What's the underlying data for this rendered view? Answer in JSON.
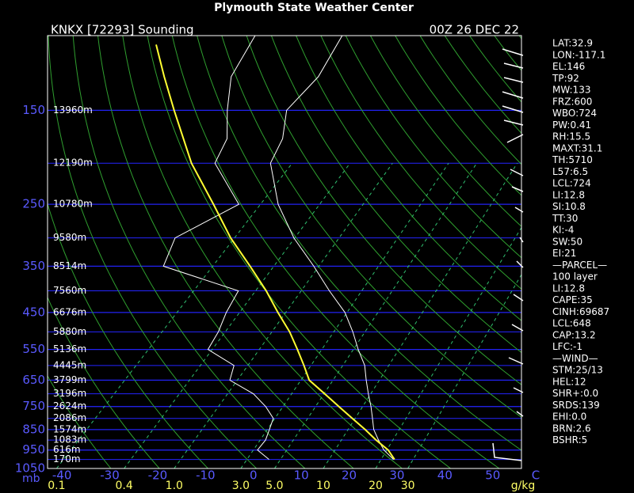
{
  "chart_data": {
    "type": "skewt",
    "title": "Plymouth State Weather Center",
    "station": "KNKX [72293] Sounding",
    "time": "00Z 26 DEC 22",
    "ylim": [
      1050,
      100
    ],
    "log_y": true,
    "yticks": [
      150,
      250,
      350,
      450,
      550,
      650,
      750,
      850,
      950,
      1050
    ],
    "y_unit": "mb",
    "xlim": [
      -43,
      56
    ],
    "xticks": [
      -40,
      -30,
      -20,
      -10,
      0,
      10,
      20,
      30,
      40,
      50
    ],
    "x_unit": "C",
    "isobar_color": "#2424ff",
    "isotherm_color": "#2f9f2f",
    "heights": {
      "pressure": [
        150,
        200,
        250,
        300,
        350,
        400,
        450,
        500,
        550,
        600,
        650,
        700,
        750,
        800,
        850,
        900,
        950,
        1000
      ],
      "labels": [
        "13960m",
        "12190m",
        "10780m",
        "9580m",
        "8514m",
        "7560m",
        "6676m",
        "5880m",
        "5136m",
        "4445m",
        "3799m",
        "3196m",
        "2624m",
        "2086m",
        "1574m",
        "1083m",
        "616m",
        "170m"
      ]
    },
    "mixing_ratio": {
      "unit": "g/kg",
      "color": "#2fbf6f",
      "ticks": [
        0.1,
        0.4,
        {
          "value": 1,
          "label": "1.0"
        },
        {
          "value": 3,
          "label": "3.0"
        },
        {
          "value": 5,
          "label": "5.0"
        },
        10,
        20,
        30
      ]
    },
    "profiles": [
      {
        "color": "#ffffff",
        "pressure": [
          1000,
          950,
          900,
          850,
          800,
          750,
          700,
          650,
          600,
          550,
          500,
          450,
          400,
          350,
          300,
          250,
          200,
          175,
          150,
          125,
          100
        ],
        "values": [
          27.4,
          23.4,
          20.2,
          17.0,
          14.4,
          11.6,
          8.4,
          5.1,
          1.7,
          -3.0,
          -7.8,
          -13.5,
          -21.3,
          -29.7,
          -39.8,
          -50.1,
          -60.3,
          -62.9,
          -68.0,
          -68.4,
          -72.0
        ]
      },
      {
        "color": "#ffffff",
        "pressure": [
          1000,
          950,
          900,
          850,
          800,
          750,
          700,
          650,
          600,
          550,
          500,
          450,
          400,
          350,
          300,
          250,
          200,
          175,
          150,
          125,
          100
        ],
        "values": [
          1.4,
          -3.0,
          -3.4,
          -4.8,
          -6.3,
          -10.4,
          -15.6,
          -23.4,
          -25.6,
          -34.4,
          -35.9,
          -38.3,
          -40.3,
          -61.1,
          -64.6,
          -58.3,
          -71.9,
          -74.5,
          -80.4,
          -86.6,
          -90.2
        ]
      },
      {
        "color": "#ffff33",
        "pressure": [
          1000,
          950,
          900,
          850,
          800,
          750,
          700,
          650,
          600,
          550,
          500,
          450,
          400,
          350,
          300,
          250,
          200,
          150,
          125,
          105
        ],
        "values": [
          27.6,
          24.3,
          19.7,
          15.2,
          10.2,
          4.9,
          -0.7,
          -6.8,
          -11.0,
          -15.7,
          -21.0,
          -27.5,
          -34.5,
          -43.0,
          -53.0,
          -63.6,
          -76.8,
          -91.5,
          -100.6,
          -109.0
        ]
      }
    ]
  },
  "indices": [
    "LAT:32.9",
    "LON:-117.1",
    "EL:146",
    "TP:92",
    "MW:133",
    "FRZ:600",
    "WBO:724",
    "PW:0.41",
    "RH:15.5",
    "MAXT:31.1",
    "TH:5710",
    "L57:6.5",
    "LCL:724",
    "LI:12.8",
    "SI:10.8",
    "TT:30",
    "KI:-4",
    "SW:50",
    "EI:21",
    "—PARCEL—",
    "100 layer",
    "LI:12.8",
    "CAPE:35",
    "CINH:69687",
    "LCL:648",
    "CAP:13.2",
    "LFC:-1",
    "—WIND—",
    "STM:25/13",
    "HEL:12",
    "SHR+:0.0",
    "SRDS:139",
    "EHI:0.0",
    "BRN:2.6",
    "BSHR:5"
  ]
}
